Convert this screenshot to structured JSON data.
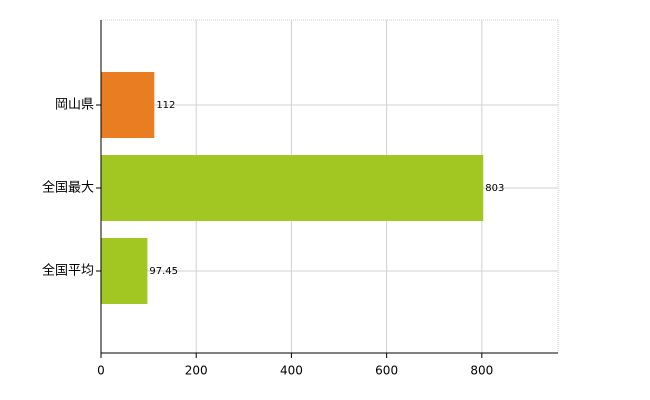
{
  "chart_data": {
    "type": "bar",
    "orientation": "horizontal",
    "categories": [
      "岡山県",
      "全国最大",
      "全国平均"
    ],
    "values": [
      112,
      803,
      97.45
    ],
    "colors": [
      "#e87d22",
      "#a2c722",
      "#a2c722"
    ],
    "xlim": [
      0,
      960
    ],
    "xticks": [
      0,
      200,
      400,
      600,
      800
    ],
    "grid": true
  }
}
